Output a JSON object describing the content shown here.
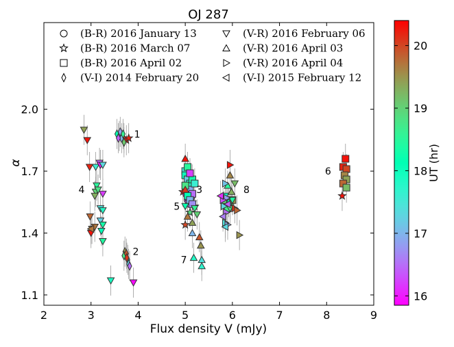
{
  "chart_data": {
    "type": "scatter",
    "title": "OJ 287",
    "xlabel": "Flux density V (mJy)",
    "ylabel": "α",
    "xlim": [
      2,
      9
    ],
    "ylim": [
      1.05,
      2.42
    ],
    "xticks": [
      2,
      3,
      4,
      5,
      6,
      7,
      8,
      9
    ],
    "yticks": [
      1.1,
      1.4,
      1.7,
      2.0
    ],
    "ytick_labels": [
      "1.1",
      "1.4",
      "1.7",
      "2.0"
    ],
    "colorbar": {
      "label": "UT (hr)",
      "range": [
        15.85,
        20.4
      ],
      "ticks": [
        16,
        17,
        18,
        19,
        20
      ],
      "colormap": "rainbow"
    },
    "legend_placement": "top",
    "series": [
      {
        "name": "(B-R) 2016 January 13",
        "marker": "circle",
        "points": [
          {
            "x": 5.02,
            "y": 1.59,
            "ut": 16.2
          },
          {
            "x": 5.05,
            "y": 1.56,
            "ut": 16.4
          },
          {
            "x": 5.08,
            "y": 1.62,
            "ut": 16.1
          },
          {
            "x": 5.1,
            "y": 1.54,
            "ut": 16.6
          },
          {
            "x": 5.12,
            "y": 1.57,
            "ut": 16.3
          }
        ]
      },
      {
        "name": "(B-R) 2016 March 07",
        "marker": "star",
        "points": [
          {
            "x": 4.95,
            "y": 1.6,
            "ut": 20.2
          },
          {
            "x": 5.0,
            "y": 1.44,
            "ut": 20.0
          },
          {
            "x": 5.1,
            "y": 1.5,
            "ut": 18.9
          },
          {
            "x": 5.15,
            "y": 1.55,
            "ut": 18.4
          },
          {
            "x": 5.2,
            "y": 1.53,
            "ut": 18.2
          },
          {
            "x": 5.05,
            "y": 1.57,
            "ut": 18.6
          },
          {
            "x": 8.33,
            "y": 1.58,
            "ut": 20.3
          },
          {
            "x": 3.7,
            "y": 1.86,
            "ut": 20.1
          },
          {
            "x": 3.75,
            "y": 1.85,
            "ut": 20.3
          },
          {
            "x": 3.8,
            "y": 1.86,
            "ut": 20.2
          }
        ]
      },
      {
        "name": "(B-R) 2016 April 02",
        "marker": "square",
        "points": [
          {
            "x": 5.0,
            "y": 1.7,
            "ut": 17.5
          },
          {
            "x": 5.0,
            "y": 1.68,
            "ut": 18.0
          },
          {
            "x": 5.05,
            "y": 1.66,
            "ut": 17.2
          },
          {
            "x": 5.1,
            "y": 1.64,
            "ut": 17.8
          },
          {
            "x": 5.1,
            "y": 1.61,
            "ut": 16.9
          },
          {
            "x": 5.15,
            "y": 1.59,
            "ut": 16.5
          },
          {
            "x": 5.15,
            "y": 1.66,
            "ut": 18.3
          },
          {
            "x": 5.2,
            "y": 1.64,
            "ut": 17.6
          },
          {
            "x": 5.0,
            "y": 1.63,
            "ut": 18.8
          },
          {
            "x": 5.05,
            "y": 1.58,
            "ut": 18.1
          },
          {
            "x": 5.1,
            "y": 1.56,
            "ut": 17.0
          },
          {
            "x": 5.15,
            "y": 1.54,
            "ut": 16.7
          },
          {
            "x": 5.05,
            "y": 1.72,
            "ut": 18.5
          },
          {
            "x": 5.1,
            "y": 1.69,
            "ut": 16.2
          },
          {
            "x": 8.35,
            "y": 1.72,
            "ut": 20.2
          },
          {
            "x": 8.4,
            "y": 1.76,
            "ut": 20.3
          },
          {
            "x": 8.42,
            "y": 1.71,
            "ut": 20.0
          },
          {
            "x": 8.38,
            "y": 1.68,
            "ut": 19.6
          },
          {
            "x": 8.42,
            "y": 1.66,
            "ut": 19.4
          },
          {
            "x": 8.35,
            "y": 1.64,
            "ut": 19.8
          },
          {
            "x": 8.42,
            "y": 1.62,
            "ut": 19.2
          },
          {
            "x": 5.85,
            "y": 1.56,
            "ut": 19.0
          },
          {
            "x": 5.95,
            "y": 1.54,
            "ut": 19.3
          },
          {
            "x": 6.0,
            "y": 1.56,
            "ut": 19.5
          },
          {
            "x": 5.9,
            "y": 1.52,
            "ut": 18.7
          }
        ]
      },
      {
        "name": "(V-I) 2014 February 20",
        "marker": "thin_diamond",
        "points": [
          {
            "x": 3.55,
            "y": 1.88,
            "ut": 18.2
          },
          {
            "x": 3.6,
            "y": 1.87,
            "ut": 17.6
          },
          {
            "x": 3.65,
            "y": 1.86,
            "ut": 17.0
          },
          {
            "x": 3.62,
            "y": 1.89,
            "ut": 16.8
          },
          {
            "x": 3.68,
            "y": 1.88,
            "ut": 18.6
          },
          {
            "x": 3.7,
            "y": 1.84,
            "ut": 19.1
          },
          {
            "x": 3.58,
            "y": 1.86,
            "ut": 16.4
          },
          {
            "x": 3.72,
            "y": 1.31,
            "ut": 19.5
          },
          {
            "x": 3.7,
            "y": 1.29,
            "ut": 18.8
          },
          {
            "x": 3.75,
            "y": 1.3,
            "ut": 19.9
          },
          {
            "x": 3.78,
            "y": 1.27,
            "ut": 18.0
          },
          {
            "x": 3.8,
            "y": 1.25,
            "ut": 17.2
          },
          {
            "x": 3.82,
            "y": 1.24,
            "ut": 16.5
          },
          {
            "x": 3.76,
            "y": 1.28,
            "ut": 20.1
          }
        ]
      },
      {
        "name": "(V-R) 2016 February 06",
        "marker": "triangle_down",
        "points": [
          {
            "x": 2.85,
            "y": 1.9,
            "ut": 19.4
          },
          {
            "x": 2.92,
            "y": 1.85,
            "ut": 20.3
          },
          {
            "x": 2.97,
            "y": 1.72,
            "ut": 20.2
          },
          {
            "x": 3.1,
            "y": 1.72,
            "ut": 17.6
          },
          {
            "x": 3.18,
            "y": 1.74,
            "ut": 16.4
          },
          {
            "x": 3.2,
            "y": 1.73,
            "ut": 16.0
          },
          {
            "x": 3.25,
            "y": 1.73,
            "ut": 17.3
          },
          {
            "x": 3.12,
            "y": 1.63,
            "ut": 18.5
          },
          {
            "x": 3.1,
            "y": 1.6,
            "ut": 19.0
          },
          {
            "x": 3.15,
            "y": 1.61,
            "ut": 18.8
          },
          {
            "x": 3.08,
            "y": 1.58,
            "ut": 19.3
          },
          {
            "x": 3.25,
            "y": 1.59,
            "ut": 16.2
          },
          {
            "x": 3.2,
            "y": 1.52,
            "ut": 17.4
          },
          {
            "x": 3.25,
            "y": 1.51,
            "ut": 17.8
          },
          {
            "x": 2.98,
            "y": 1.48,
            "ut": 19.8
          },
          {
            "x": 3.02,
            "y": 1.42,
            "ut": 19.6
          },
          {
            "x": 3.0,
            "y": 1.4,
            "ut": 20.3
          },
          {
            "x": 3.2,
            "y": 1.46,
            "ut": 17.2
          },
          {
            "x": 3.25,
            "y": 1.44,
            "ut": 18.3
          },
          {
            "x": 3.22,
            "y": 1.41,
            "ut": 18.1
          },
          {
            "x": 3.25,
            "y": 1.36,
            "ut": 18.4
          },
          {
            "x": 3.08,
            "y": 1.43,
            "ut": 19.7
          },
          {
            "x": 3.42,
            "y": 1.17,
            "ut": 17.9
          },
          {
            "x": 3.9,
            "y": 1.16,
            "ut": 15.9
          },
          {
            "x": 5.2,
            "y": 1.52,
            "ut": 18.6
          },
          {
            "x": 5.25,
            "y": 1.49,
            "ut": 19.0
          },
          {
            "x": 5.0,
            "y": 1.53,
            "ut": 18.2
          },
          {
            "x": 6.0,
            "y": 1.56,
            "ut": 18.4
          },
          {
            "x": 5.95,
            "y": 1.52,
            "ut": 18.8
          },
          {
            "x": 6.05,
            "y": 1.64,
            "ut": 19.2
          },
          {
            "x": 5.85,
            "y": 1.58,
            "ut": 18.0
          }
        ]
      },
      {
        "name": "(V-R) 2016 April 03",
        "marker": "triangle_up",
        "points": [
          {
            "x": 5.0,
            "y": 1.76,
            "ut": 20.3
          },
          {
            "x": 5.0,
            "y": 1.61,
            "ut": 20.1
          },
          {
            "x": 5.15,
            "y": 1.45,
            "ut": 19.4
          },
          {
            "x": 5.15,
            "y": 1.4,
            "ut": 17.0
          },
          {
            "x": 5.18,
            "y": 1.28,
            "ut": 17.8
          },
          {
            "x": 5.3,
            "y": 1.38,
            "ut": 19.9
          },
          {
            "x": 5.33,
            "y": 1.34,
            "ut": 19.5
          },
          {
            "x": 5.35,
            "y": 1.27,
            "ut": 17.4
          },
          {
            "x": 5.35,
            "y": 1.24,
            "ut": 17.7
          },
          {
            "x": 5.95,
            "y": 1.68,
            "ut": 19.6
          },
          {
            "x": 5.98,
            "y": 1.6,
            "ut": 19.3
          },
          {
            "x": 5.9,
            "y": 1.63,
            "ut": 18.5
          },
          {
            "x": 5.92,
            "y": 1.55,
            "ut": 18.1
          },
          {
            "x": 5.05,
            "y": 1.48,
            "ut": 19.7
          }
        ]
      },
      {
        "name": "(V-R) 2016 April 04",
        "marker": "triangle_right",
        "points": [
          {
            "x": 5.85,
            "y": 1.64,
            "ut": 17.1
          },
          {
            "x": 5.88,
            "y": 1.57,
            "ut": 16.8
          },
          {
            "x": 5.82,
            "y": 1.53,
            "ut": 17.3
          },
          {
            "x": 5.87,
            "y": 1.5,
            "ut": 16.5
          },
          {
            "x": 5.85,
            "y": 1.45,
            "ut": 17.4
          },
          {
            "x": 5.9,
            "y": 1.44,
            "ut": 16.9
          },
          {
            "x": 5.95,
            "y": 1.73,
            "ut": 20.3
          },
          {
            "x": 6.05,
            "y": 1.52,
            "ut": 20.1
          },
          {
            "x": 6.1,
            "y": 1.51,
            "ut": 19.8
          },
          {
            "x": 6.15,
            "y": 1.39,
            "ut": 19.5
          },
          {
            "x": 5.8,
            "y": 1.56,
            "ut": 16.3
          }
        ]
      },
      {
        "name": "(V-I) 2015 February 12",
        "marker": "triangle_left",
        "points": [
          {
            "x": 3.0,
            "y": 1.42,
            "ut": 19.7
          },
          {
            "x": 5.75,
            "y": 1.58,
            "ut": 16.1
          },
          {
            "x": 5.8,
            "y": 1.48,
            "ut": 16.6
          },
          {
            "x": 5.85,
            "y": 1.43,
            "ut": 17.3
          },
          {
            "x": 5.9,
            "y": 1.54,
            "ut": 16.4
          }
        ]
      }
    ],
    "annotations": [
      {
        "text": "1",
        "x": 3.98,
        "y": 1.88
      },
      {
        "text": "2",
        "x": 3.95,
        "y": 1.31
      },
      {
        "text": "3",
        "x": 5.3,
        "y": 1.61
      },
      {
        "text": "4",
        "x": 2.8,
        "y": 1.61
      },
      {
        "text": "5",
        "x": 4.82,
        "y": 1.53
      },
      {
        "text": "6",
        "x": 8.03,
        "y": 1.7
      },
      {
        "text": "7",
        "x": 4.97,
        "y": 1.27
      },
      {
        "text": "8",
        "x": 6.3,
        "y": 1.61
      }
    ]
  }
}
